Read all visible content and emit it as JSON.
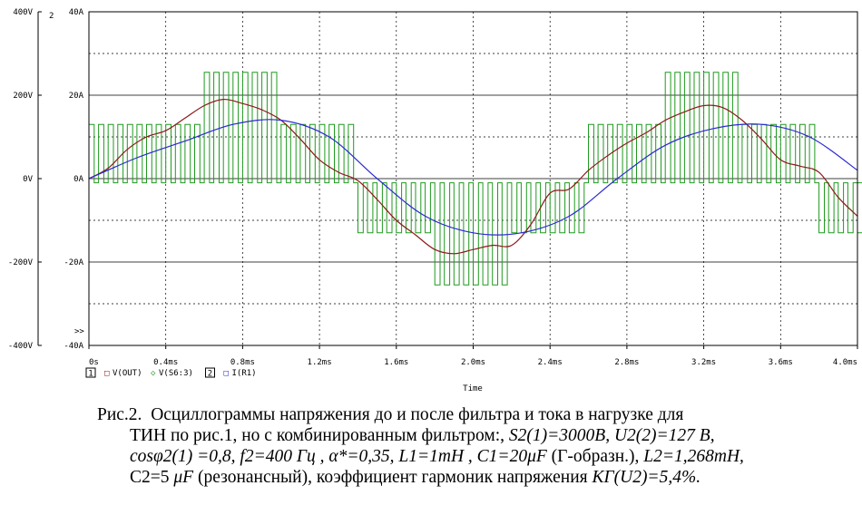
{
  "chart_data": {
    "type": "line",
    "x_unit": "ms",
    "xlabel": "Time",
    "xlim": [
      0,
      4.0
    ],
    "x_ticks": [
      "0s",
      "0.4ms",
      "0.8ms",
      "1.2ms",
      "1.6ms",
      "2.0ms",
      "2.4ms",
      "2.8ms",
      "3.2ms",
      "3.6ms",
      "4.0ms"
    ],
    "y_ticks_voltage": [
      "400V",
      "200V",
      "0V",
      "-200V",
      "-400V"
    ],
    "y_ticks_current": [
      "40A",
      "20A",
      "0A",
      "-20A",
      "-40A"
    ],
    "ylim_voltage": [
      -400,
      400
    ],
    "ylim_current": [
      -40,
      40
    ],
    "grid": true,
    "axis_index_label": "2",
    "axis_marker": ">>",
    "legend": [
      {
        "box": "1",
        "items": [
          {
            "symbol": "□",
            "label": "V(OUT)",
            "color": "#8b1a1a"
          },
          {
            "symbol": "◇",
            "label": "V(S6:3)",
            "color": "#1f9a1f"
          }
        ]
      },
      {
        "box": "2",
        "items": [
          {
            "symbol": "□",
            "label": "I(R1)",
            "color": "#2a2ad2"
          }
        ]
      }
    ],
    "colors": {
      "out": "#8b1a1a",
      "s6": "#1f9a1f",
      "current": "#2a2ad2"
    },
    "series": [
      {
        "name": "V(OUT)",
        "axis": "voltage",
        "x": [
          0.0,
          0.1,
          0.2,
          0.3,
          0.4,
          0.5,
          0.6,
          0.7,
          0.8,
          0.9,
          1.0,
          1.1,
          1.2,
          1.3,
          1.4,
          1.5,
          1.6,
          1.7,
          1.8,
          1.9,
          2.0,
          2.1,
          2.2,
          2.3,
          2.4,
          2.5,
          2.6,
          2.7,
          2.8,
          2.9,
          3.0,
          3.1,
          3.2,
          3.3,
          3.4,
          3.5,
          3.6,
          3.7,
          3.8,
          3.9,
          4.0
        ],
        "values": [
          0,
          25,
          70,
          100,
          115,
          145,
          175,
          190,
          180,
          165,
          140,
          95,
          45,
          15,
          -5,
          -50,
          -100,
          -135,
          -170,
          -180,
          -170,
          -160,
          -160,
          -110,
          -35,
          -25,
          20,
          55,
          85,
          110,
          140,
          160,
          175,
          170,
          140,
          95,
          45,
          30,
          15,
          -45,
          -90
        ]
      },
      {
        "name": "V(S6:3)",
        "axis": "voltage",
        "x": [
          0.0,
          0.4,
          0.6,
          0.8,
          1.0,
          1.2,
          1.4,
          1.6,
          1.8,
          2.0,
          2.2,
          2.4,
          2.6,
          2.8,
          3.0,
          3.2,
          3.4,
          3.6,
          3.8,
          4.0
        ],
        "values": [
          130,
          130,
          255,
          255,
          130,
          130,
          -130,
          -130,
          -255,
          -255,
          -130,
          -130,
          130,
          130,
          255,
          255,
          130,
          130,
          -130,
          -130
        ],
        "note_pwm_off_level": -10
      },
      {
        "name": "I(R1)",
        "axis": "current",
        "x": [
          0.0,
          0.25,
          0.5,
          0.75,
          1.0,
          1.25,
          1.5,
          1.75,
          2.0,
          2.25,
          2.5,
          2.75,
          3.0,
          3.25,
          3.5,
          3.75,
          4.0
        ],
        "values": [
          0,
          5,
          9,
          13,
          14,
          10,
          0,
          -9,
          -13,
          -13,
          -9,
          0,
          8,
          12,
          13,
          10,
          2
        ]
      }
    ]
  },
  "caption": {
    "prefix": "Рис.2.",
    "line1": "Осциллограммы напряжения до и после фильтра и тока в нагрузке для",
    "line2_plain": "ТИН по рис.1, но с комбинированным фильтром:, ",
    "line2_italic": "S2(1)=3000В,  U2(2)=127 В,",
    "line3_italic": "cosφ2(1) =0,8,  f2=400 Гц ,  α*=0,35,  L1=1mH , C1=20μF",
    "line3_plain": " (Г-образн.), ",
    "line3_italic2": "L2=1,268mH,",
    "line4_plain": "C2=5 ",
    "line4_italic": "μF",
    "line4_plain2": " (резонансный), коэффициент гармоник напряжения ",
    "line4_italic2": "KГ(U2)=5,4%."
  }
}
